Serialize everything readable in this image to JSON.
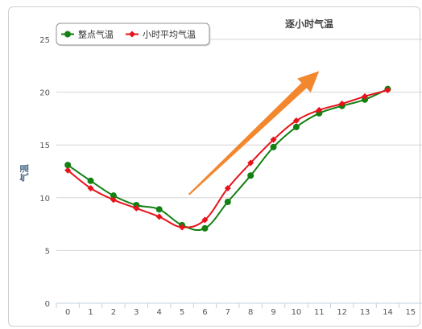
{
  "chart_data": {
    "type": "line",
    "title": "逐小时气温",
    "ylabel": "气温",
    "xlabel": "",
    "x": [
      0,
      1,
      2,
      3,
      4,
      5,
      6,
      7,
      8,
      9,
      10,
      11,
      12,
      13,
      14
    ],
    "x_ticks": [
      "0",
      "1",
      "2",
      "3",
      "4",
      "5",
      "6",
      "7",
      "8",
      "9",
      "10",
      "11",
      "12",
      "13",
      "14",
      "15"
    ],
    "xlim": [
      -0.5,
      15.5
    ],
    "y_ticks": [
      "0",
      "5",
      "10",
      "15",
      "20",
      "25"
    ],
    "ylim": [
      0,
      25
    ],
    "grid": true,
    "legend_position": "top-left",
    "series": [
      {
        "name": "整点气温",
        "color": "#138012",
        "marker": "circle",
        "values": [
          13.1,
          11.6,
          10.2,
          9.3,
          8.9,
          7.4,
          7.1,
          9.6,
          12.1,
          14.8,
          16.7,
          18.0,
          18.7,
          19.3,
          20.3
        ]
      },
      {
        "name": "小时平均气温",
        "color": "#e8121b",
        "marker": "diamond",
        "values": [
          12.6,
          10.9,
          9.8,
          9.0,
          8.2,
          7.2,
          7.9,
          10.9,
          13.3,
          15.5,
          17.3,
          18.3,
          18.9,
          19.6,
          20.2
        ]
      }
    ],
    "annotation": {
      "type": "arrow",
      "color": "#f2872e",
      "from": [
        5.3,
        10.3
      ],
      "to": [
        11,
        22
      ]
    }
  }
}
